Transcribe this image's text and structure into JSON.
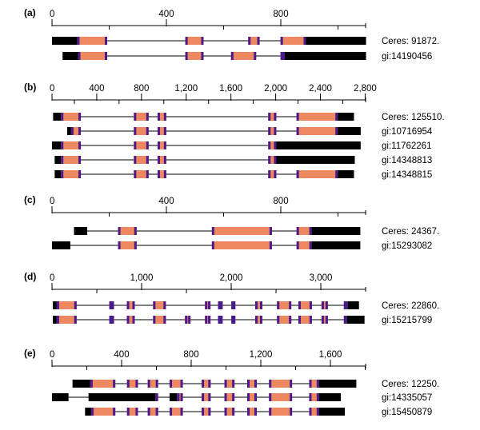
{
  "colors": {
    "utr": "#000000",
    "cds": "#ee8860",
    "boundary": "#4b1a8c",
    "intron": "#000000",
    "axis": "#000000"
  },
  "panels": [
    {
      "label": "(a)",
      "ticks": [
        0,
        400,
        800
      ],
      "minor_ticks": [
        200,
        600,
        1000
      ],
      "axis_max": 1100,
      "tracks": [
        {
          "name": "Ceres: 91872.",
          "exons": [
            {
              "start": 0,
              "end": 88,
              "kind": "utr"
            },
            {
              "start": 88,
              "end": 193,
              "kind": "cds"
            },
            {
              "start": 466,
              "end": 530,
              "kind": "cds"
            },
            {
              "start": 686,
              "end": 726,
              "kind": "cds"
            },
            {
              "start": 799,
              "end": 888,
              "kind": "cds"
            },
            {
              "start": 888,
              "end": 1098,
              "kind": "utr"
            }
          ]
        },
        {
          "name": "gi:14190456",
          "exons": [
            {
              "start": 37,
              "end": 91,
              "kind": "utr"
            },
            {
              "start": 91,
              "end": 193,
              "kind": "cds"
            },
            {
              "start": 466,
              "end": 530,
              "kind": "cds"
            },
            {
              "start": 626,
              "end": 714,
              "kind": "cds"
            },
            {
              "start": 799,
              "end": 814,
              "kind": "cds"
            },
            {
              "start": 814,
              "end": 1098,
              "kind": "utr"
            }
          ]
        }
      ]
    },
    {
      "label": "(b)",
      "ticks": [
        0,
        400,
        800,
        1200,
        1600,
        2000,
        2400,
        2800
      ],
      "tick_labels": [
        "0",
        "400",
        "800",
        "1,200",
        "1,600",
        "2,000",
        "2,400",
        "2,800"
      ],
      "minor_ticks": [
        200,
        600,
        1000,
        1400,
        1800,
        2200,
        2600
      ],
      "axis_max": 2800,
      "tracks": [
        {
          "name": "Ceres: 125510.",
          "exons": [
            {
              "start": 10,
              "end": 80,
              "kind": "utr"
            },
            {
              "start": 80,
              "end": 258,
              "kind": "cds"
            },
            {
              "start": 732,
              "end": 864,
              "kind": "cds"
            },
            {
              "start": 944,
              "end": 1022,
              "kind": "cds"
            },
            {
              "start": 1933,
              "end": 2006,
              "kind": "cds"
            },
            {
              "start": 2186,
              "end": 2555,
              "kind": "cds"
            },
            {
              "start": 2555,
              "end": 2700,
              "kind": "utr"
            }
          ]
        },
        {
          "name": "gi:10716954",
          "exons": [
            {
              "start": 136,
              "end": 171,
              "kind": "utr"
            },
            {
              "start": 171,
              "end": 258,
              "kind": "cds"
            },
            {
              "start": 732,
              "end": 864,
              "kind": "cds"
            },
            {
              "start": 944,
              "end": 1022,
              "kind": "cds"
            },
            {
              "start": 1933,
              "end": 2006,
              "kind": "cds"
            },
            {
              "start": 2186,
              "end": 2555,
              "kind": "cds"
            },
            {
              "start": 2555,
              "end": 2760,
              "kind": "utr"
            }
          ]
        },
        {
          "name": "gi:11762261",
          "exons": [
            {
              "start": 0,
              "end": 80,
              "kind": "utr"
            },
            {
              "start": 80,
              "end": 258,
              "kind": "cds"
            },
            {
              "start": 732,
              "end": 864,
              "kind": "cds"
            },
            {
              "start": 944,
              "end": 1022,
              "kind": "cds"
            },
            {
              "start": 1933,
              "end": 2006,
              "kind": "cds"
            },
            {
              "start": 2006,
              "end": 2760,
              "kind": "utr"
            }
          ]
        },
        {
          "name": "gi:14348813",
          "exons": [
            {
              "start": 24,
              "end": 80,
              "kind": "utr"
            },
            {
              "start": 80,
              "end": 258,
              "kind": "cds"
            },
            {
              "start": 732,
              "end": 864,
              "kind": "cds"
            },
            {
              "start": 944,
              "end": 1022,
              "kind": "cds"
            },
            {
              "start": 1933,
              "end": 2006,
              "kind": "cds"
            },
            {
              "start": 2006,
              "end": 2707,
              "kind": "utr"
            }
          ]
        },
        {
          "name": "gi:14348815",
          "exons": [
            {
              "start": 24,
              "end": 80,
              "kind": "utr"
            },
            {
              "start": 80,
              "end": 258,
              "kind": "cds"
            },
            {
              "start": 732,
              "end": 864,
              "kind": "cds"
            },
            {
              "start": 944,
              "end": 1022,
              "kind": "cds"
            },
            {
              "start": 1933,
              "end": 2006,
              "kind": "cds"
            },
            {
              "start": 2186,
              "end": 2555,
              "kind": "cds"
            },
            {
              "start": 2555,
              "end": 2700,
              "kind": "utr"
            }
          ]
        }
      ]
    },
    {
      "label": "(c)",
      "ticks": [
        0,
        400,
        800
      ],
      "minor_ticks": [
        200,
        600,
        1000
      ],
      "axis_max": 1100,
      "tracks": [
        {
          "name": "Ceres: 24367.",
          "exons": [
            {
              "start": 77,
              "end": 123,
              "kind": "utr"
            },
            {
              "start": 231,
              "end": 296,
              "kind": "cds"
            },
            {
              "start": 559,
              "end": 769,
              "kind": "cds"
            },
            {
              "start": 855,
              "end": 908,
              "kind": "cds"
            },
            {
              "start": 908,
              "end": 1078,
              "kind": "utr"
            }
          ]
        },
        {
          "name": "gi:15293082",
          "exons": [
            {
              "start": 0,
              "end": 64,
              "kind": "utr"
            },
            {
              "start": 231,
              "end": 296,
              "kind": "cds"
            },
            {
              "start": 559,
              "end": 769,
              "kind": "cds"
            },
            {
              "start": 855,
              "end": 908,
              "kind": "cds"
            },
            {
              "start": 908,
              "end": 1078,
              "kind": "utr"
            }
          ]
        }
      ]
    },
    {
      "label": "(d)",
      "ticks": [
        0,
        1000,
        2000,
        3000
      ],
      "tick_labels": [
        "0",
        "1,000",
        "2,000",
        "3,000"
      ],
      "minor_ticks": [
        500,
        1500,
        2500
      ],
      "axis_max": 3500,
      "tracks": [
        {
          "name": "Ceres: 22860.",
          "exons": [
            {
              "start": 10,
              "end": 53,
              "kind": "utr"
            },
            {
              "start": 53,
              "end": 275,
              "kind": "cds"
            },
            {
              "start": 639,
              "end": 692,
              "kind": "cds"
            },
            {
              "start": 835,
              "end": 924,
              "kind": "cds"
            },
            {
              "start": 1128,
              "end": 1271,
              "kind": "cds"
            },
            {
              "start": 1707,
              "end": 1769,
              "kind": "cds"
            },
            {
              "start": 1853,
              "end": 1905,
              "kind": "cds"
            },
            {
              "start": 2001,
              "end": 2047,
              "kind": "cds"
            },
            {
              "start": 2268,
              "end": 2348,
              "kind": "cds"
            },
            {
              "start": 2511,
              "end": 2671,
              "kind": "cds"
            },
            {
              "start": 2750,
              "end": 2901,
              "kind": "cds"
            },
            {
              "start": 3008,
              "end": 3079,
              "kind": "cds"
            },
            {
              "start": 3257,
              "end": 3301,
              "kind": "cds"
            },
            {
              "start": 3301,
              "end": 3426,
              "kind": "utr"
            }
          ]
        },
        {
          "name": "gi:15215799",
          "exons": [
            {
              "start": 10,
              "end": 53,
              "kind": "utr"
            },
            {
              "start": 53,
              "end": 275,
              "kind": "cds"
            },
            {
              "start": 639,
              "end": 692,
              "kind": "cds"
            },
            {
              "start": 835,
              "end": 924,
              "kind": "cds"
            },
            {
              "start": 1128,
              "end": 1271,
              "kind": "cds"
            },
            {
              "start": 1484,
              "end": 1546,
              "kind": "cds"
            },
            {
              "start": 1707,
              "end": 1769,
              "kind": "cds"
            },
            {
              "start": 1853,
              "end": 1905,
              "kind": "cds"
            },
            {
              "start": 2001,
              "end": 2047,
              "kind": "cds"
            },
            {
              "start": 2268,
              "end": 2348,
              "kind": "cds"
            },
            {
              "start": 2511,
              "end": 2671,
              "kind": "cds"
            },
            {
              "start": 2750,
              "end": 2901,
              "kind": "cds"
            },
            {
              "start": 3008,
              "end": 3079,
              "kind": "cds"
            },
            {
              "start": 3257,
              "end": 3292,
              "kind": "cds"
            },
            {
              "start": 3292,
              "end": 3488,
              "kind": "utr"
            }
          ]
        }
      ]
    },
    {
      "label": "(e)",
      "ticks": [
        0,
        400,
        800,
        1200,
        1600
      ],
      "tick_labels": [
        "0",
        "400",
        "800",
        "1,200",
        "1,600"
      ],
      "minor_ticks": [
        200,
        600,
        1000,
        1400,
        1800
      ],
      "axis_max": 1800,
      "tracks": [
        {
          "name": "Ceres: 12250.",
          "exons": [
            {
              "start": 118,
              "end": 220,
              "kind": "utr"
            },
            {
              "start": 220,
              "end": 364,
              "kind": "cds"
            },
            {
              "start": 431,
              "end": 494,
              "kind": "cds"
            },
            {
              "start": 550,
              "end": 610,
              "kind": "cds"
            },
            {
              "start": 676,
              "end": 752,
              "kind": "cds"
            },
            {
              "start": 860,
              "end": 912,
              "kind": "cds"
            },
            {
              "start": 991,
              "end": 1049,
              "kind": "cds"
            },
            {
              "start": 1122,
              "end": 1177,
              "kind": "cds"
            },
            {
              "start": 1247,
              "end": 1380,
              "kind": "cds"
            },
            {
              "start": 1478,
              "end": 1535,
              "kind": "cds"
            },
            {
              "start": 1535,
              "end": 1749,
              "kind": "utr"
            }
          ]
        },
        {
          "name": "gi:14335057",
          "exons": [
            {
              "start": 0,
              "end": 95,
              "kind": "utr"
            },
            {
              "start": 210,
              "end": 595,
              "kind": "utr"
            },
            {
              "start": 595,
              "end": 610,
              "kind": "cds"
            },
            {
              "start": 676,
              "end": 719,
              "kind": "utr"
            },
            {
              "start": 719,
              "end": 752,
              "kind": "cds"
            },
            {
              "start": 860,
              "end": 912,
              "kind": "cds"
            },
            {
              "start": 991,
              "end": 1049,
              "kind": "cds"
            },
            {
              "start": 1122,
              "end": 1177,
              "kind": "cds"
            },
            {
              "start": 1247,
              "end": 1380,
              "kind": "cds"
            },
            {
              "start": 1478,
              "end": 1535,
              "kind": "cds"
            },
            {
              "start": 1535,
              "end": 1660,
              "kind": "utr"
            }
          ]
        },
        {
          "name": "gi:15450879",
          "exons": [
            {
              "start": 190,
              "end": 225,
              "kind": "utr"
            },
            {
              "start": 225,
              "end": 364,
              "kind": "cds"
            },
            {
              "start": 431,
              "end": 494,
              "kind": "cds"
            },
            {
              "start": 550,
              "end": 610,
              "kind": "cds"
            },
            {
              "start": 676,
              "end": 752,
              "kind": "cds"
            },
            {
              "start": 860,
              "end": 912,
              "kind": "cds"
            },
            {
              "start": 991,
              "end": 1049,
              "kind": "cds"
            },
            {
              "start": 1122,
              "end": 1177,
              "kind": "cds"
            },
            {
              "start": 1247,
              "end": 1380,
              "kind": "cds"
            },
            {
              "start": 1478,
              "end": 1535,
              "kind": "cds"
            },
            {
              "start": 1535,
              "end": 1683,
              "kind": "utr"
            }
          ]
        }
      ]
    }
  ]
}
